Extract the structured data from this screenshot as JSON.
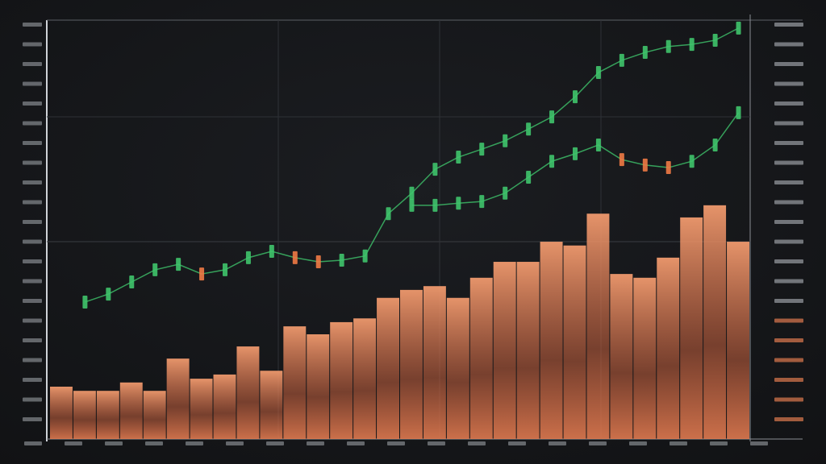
{
  "chart_data": {
    "type": "candlestick",
    "ylim": [
      0,
      100
    ],
    "series": [
      {
        "color": "#3fc46b",
        "values": [
          null,
          32.7,
          34.6,
          37.5,
          40.4,
          41.7,
          39.4,
          40.4,
          43.3,
          44.8,
          43.3,
          42.3,
          42.7,
          43.7,
          53.8,
          58.7,
          64.4,
          67.3,
          69.2,
          71.2,
          74,
          76.9,
          81.7,
          87.5,
          90.4,
          92.3,
          93.7,
          94.2,
          95.2,
          98.1
        ]
      },
      {
        "color": "#3fc46b",
        "values": [
          null,
          null,
          null,
          null,
          null,
          null,
          null,
          null,
          null,
          null,
          null,
          null,
          null,
          null,
          null,
          55.8,
          55.8,
          56.3,
          56.7,
          58.7,
          62.5,
          66.3,
          68.1,
          70.2,
          66.7,
          65.4,
          64.8,
          66.3,
          70.2,
          77.9
        ]
      }
    ],
    "volume": {
      "color": "#e8825a",
      "values": [
        12.5,
        11.5,
        11.5,
        13.5,
        11.5,
        19.2,
        14.4,
        15.4,
        22.1,
        16.3,
        26.9,
        25,
        27.9,
        28.8,
        33.7,
        35.6,
        36.5,
        33.7,
        38.5,
        42.3,
        42.3,
        47.1,
        46.2,
        53.8,
        39.4,
        38.5,
        43.3,
        52.9,
        55.8,
        47.1
      ]
    }
  }
}
